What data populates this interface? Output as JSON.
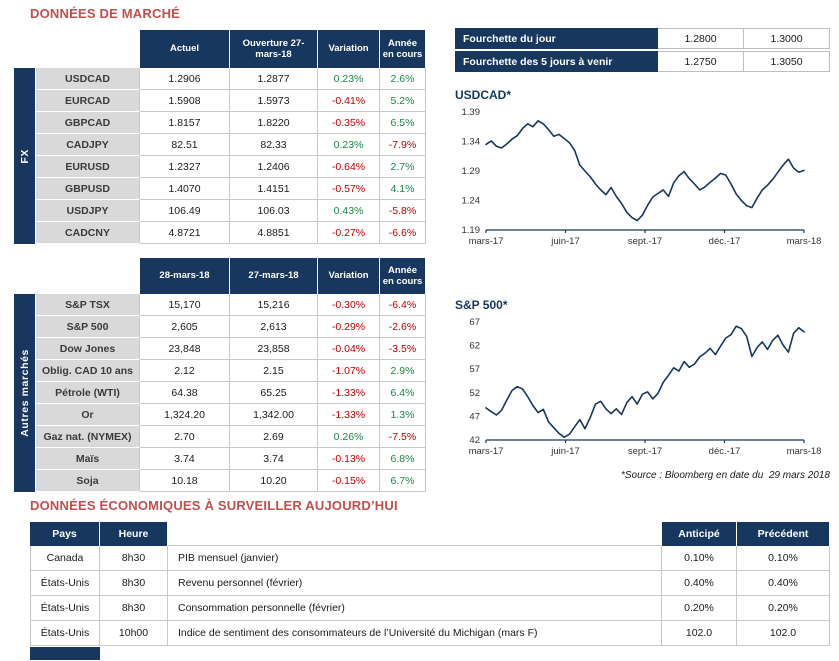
{
  "colors": {
    "navy": "#17375E",
    "grey": "#D9D9D9",
    "title-red": "#C0504D",
    "pos-green": "#1E8449",
    "neg-red": "#C00000",
    "border": "#C9C9C9"
  },
  "titles": {
    "market": "DONNÉES DE MARCHÉ",
    "econ": "DONNÉES ÉCONOMIQUES À SURVEILLER AUJOURD’HUI",
    "source": "*Source : Bloomberg en date du  29 mars 2018"
  },
  "fx_table": {
    "side_label": "FX",
    "headers": [
      "Actuel",
      "Ouverture 27-mars-18",
      "Variation",
      "Année en cours"
    ],
    "rows": [
      [
        "USDCAD",
        "1.2906",
        "1.2877",
        "0.23%",
        "2.6%"
      ],
      [
        "EURCAD",
        "1.5908",
        "1.5973",
        "-0.41%",
        "5.2%"
      ],
      [
        "GBPCAD",
        "1.8157",
        "1.8220",
        "-0.35%",
        "6.5%"
      ],
      [
        "CADJPY",
        "82.51",
        "82.33",
        "0.23%",
        "-7.9%"
      ],
      [
        "EURUSD",
        "1.2327",
        "1.2406",
        "-0.64%",
        "2.7%"
      ],
      [
        "GBPUSD",
        "1.4070",
        "1.4151",
        "-0.57%",
        "4.1%"
      ],
      [
        "USDJPY",
        "106.49",
        "106.03",
        "0.43%",
        "-5.8%"
      ],
      [
        "CADCNY",
        "4.8721",
        "4.8851",
        "-0.27%",
        "-6.6%"
      ]
    ]
  },
  "markets_table": {
    "side_label": "Autres marchés",
    "headers": [
      "28-mars-18",
      "27-mars-18",
      "Variation",
      "Année en cours"
    ],
    "rows": [
      [
        "S&P TSX",
        "15,170",
        "15,216",
        "-0.30%",
        "-6.4%"
      ],
      [
        "S&P 500",
        "2,605",
        "2,613",
        "-0.29%",
        "-2.6%"
      ],
      [
        "Dow Jones",
        "23,848",
        "23,858",
        "-0.04%",
        "-3.5%"
      ],
      [
        "Oblig. CAD 10 ans",
        "2.12",
        "2.15",
        "-1.07%",
        "2.9%"
      ],
      [
        "Pétrole (WTI)",
        "64.38",
        "65.25",
        "-1.33%",
        "6.4%"
      ],
      [
        "Or",
        "1,324.20",
        "1,342.00",
        "-1.33%",
        "1.3%"
      ],
      [
        "Gaz nat. (NYMEX)",
        "2.70",
        "2.69",
        "0.26%",
        "-7.5%"
      ],
      [
        "Maïs",
        "3.74",
        "3.74",
        "-0.13%",
        "6.8%"
      ],
      [
        "Soja",
        "10.18",
        "10.20",
        "-0.15%",
        "6.7%"
      ]
    ]
  },
  "ranges": [
    {
      "label": "Fourchette du jour",
      "low": "1.2800",
      "high": "1.3000"
    },
    {
      "label": "Fourchette des 5 jours à venir",
      "low": "1.2750",
      "high": "1.3050"
    }
  ],
  "chart_data": [
    {
      "type": "line",
      "title": "USDCAD*",
      "x_ticklabels": [
        "mars-17",
        "juin-17",
        "sept.-17",
        "déc.-17",
        "mars-18"
      ],
      "y_ticks": [
        "1.19",
        "1.24",
        "1.29",
        "1.34",
        "1.39"
      ],
      "ylim": [
        1.19,
        1.39
      ],
      "line_color": "#17375E",
      "values": [
        1.335,
        1.341,
        1.332,
        1.329,
        1.336,
        1.344,
        1.35,
        1.362,
        1.37,
        1.365,
        1.375,
        1.37,
        1.36,
        1.349,
        1.352,
        1.345,
        1.338,
        1.325,
        1.3,
        1.29,
        1.28,
        1.268,
        1.258,
        1.25,
        1.262,
        1.247,
        1.235,
        1.22,
        1.211,
        1.206,
        1.215,
        1.232,
        1.246,
        1.252,
        1.258,
        1.247,
        1.27,
        1.282,
        1.289,
        1.277,
        1.268,
        1.258,
        1.263,
        1.271,
        1.278,
        1.286,
        1.283,
        1.268,
        1.251,
        1.24,
        1.231,
        1.228,
        1.244,
        1.258,
        1.266,
        1.276,
        1.288,
        1.3,
        1.31,
        1.295,
        1.288,
        1.291
      ]
    },
    {
      "type": "line",
      "title": "S&P 500*",
      "x_ticklabels": [
        "mars-17",
        "juin-17",
        "sept.-17",
        "déc.-17",
        "mars-18"
      ],
      "y_ticks": [
        "42",
        "47",
        "52",
        "57",
        "62",
        "67"
      ],
      "ylim": [
        42,
        67
      ],
      "line_color": "#17375E",
      "values": [
        48.8,
        48.0,
        47.3,
        48.3,
        50.5,
        52.5,
        53.3,
        52.8,
        51.2,
        49.3,
        47.8,
        48.5,
        45.8,
        44.6,
        43.4,
        42.6,
        43.2,
        44.8,
        46.3,
        44.4,
        46.8,
        49.6,
        50.2,
        48.6,
        47.6,
        48.6,
        47.4,
        49.9,
        51.2,
        49.6,
        51.7,
        52.2,
        50.7,
        51.9,
        54.2,
        55.7,
        57.3,
        56.6,
        58.6,
        57.4,
        58.1,
        59.6,
        60.4,
        61.4,
        60.1,
        61.9,
        63.6,
        64.3,
        66.1,
        65.6,
        63.9,
        59.7,
        61.6,
        62.8,
        61.2,
        63.1,
        64.2,
        62.1,
        60.6,
        64.6,
        65.8,
        64.9
      ]
    }
  ],
  "econ_table": {
    "headers": [
      "Pays",
      "Heure",
      "",
      "Anticipé",
      "Précédent"
    ],
    "rows": [
      [
        "Canada",
        "8h30",
        "PIB mensuel (janvier)",
        "0.10%",
        "0.10%"
      ],
      [
        "États-Unis",
        "8h30",
        "Revenu personnel (février)",
        "0.40%",
        "0.40%"
      ],
      [
        "États-Unis",
        "8h30",
        "Consommation personnelle (février)",
        "0.20%",
        "0.20%"
      ],
      [
        "États-Unis",
        "10h00",
        "Indice de sentiment des consommateurs de l’Université du Michigan (mars F)",
        "102.0",
        "102.0"
      ]
    ]
  }
}
